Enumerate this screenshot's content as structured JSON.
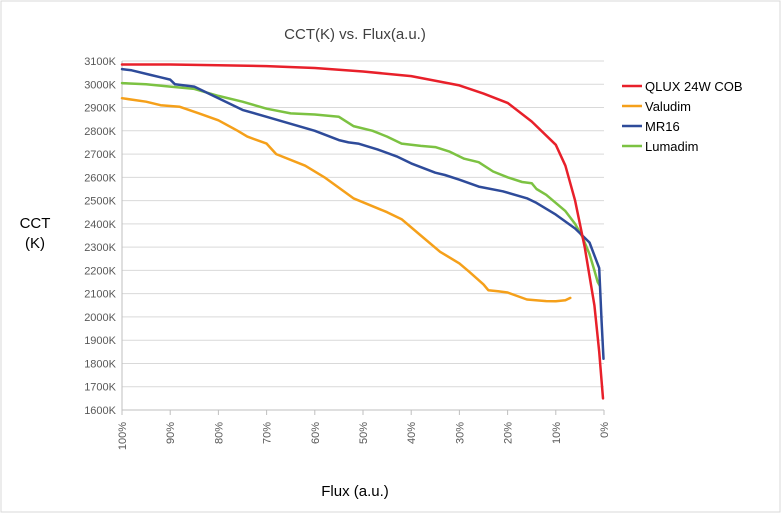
{
  "chart_data": {
    "type": "line",
    "title": "CCT(K) vs. Flux(a.u.)",
    "xlabel": "Flux (a.u.)",
    "ylabel_lines": [
      "CCT",
      "(K)"
    ],
    "x_ticks": [
      "100%",
      "90%",
      "80%",
      "70%",
      "60%",
      "50%",
      "40%",
      "30%",
      "20%",
      "10%",
      "0%"
    ],
    "x_direction": "descending",
    "xlim": [
      100,
      0
    ],
    "y_ticks": [
      "3100K",
      "3000K",
      "2900K",
      "2800K",
      "2700K",
      "2600K",
      "2500K",
      "2400K",
      "2300K",
      "2200K",
      "2100K",
      "2000K",
      "1900K",
      "1800K",
      "1700K",
      "1600K"
    ],
    "ylim": [
      1600,
      3100
    ],
    "grid": "horizontal",
    "legend_position": "right",
    "series": [
      {
        "name": "QLUX 24W COB",
        "color": "#e8202a",
        "points": [
          [
            100,
            3085
          ],
          [
            90,
            3085
          ],
          [
            80,
            3082
          ],
          [
            70,
            3078
          ],
          [
            60,
            3070
          ],
          [
            50,
            3055
          ],
          [
            40,
            3035
          ],
          [
            30,
            2995
          ],
          [
            25,
            2960
          ],
          [
            20,
            2920
          ],
          [
            15,
            2840
          ],
          [
            10,
            2740
          ],
          [
            8,
            2650
          ],
          [
            6,
            2500
          ],
          [
            4,
            2300
          ],
          [
            2,
            2050
          ],
          [
            1,
            1850
          ],
          [
            0.2,
            1650
          ]
        ]
      },
      {
        "name": "Valudim",
        "color": "#f5a01a",
        "points": [
          [
            100,
            2940
          ],
          [
            95,
            2925
          ],
          [
            92,
            2910
          ],
          [
            88,
            2903
          ],
          [
            84,
            2875
          ],
          [
            80,
            2845
          ],
          [
            76,
            2800
          ],
          [
            74,
            2775
          ],
          [
            70,
            2745
          ],
          [
            68,
            2700
          ],
          [
            62,
            2650
          ],
          [
            58,
            2600
          ],
          [
            55,
            2555
          ],
          [
            52,
            2510
          ],
          [
            45,
            2450
          ],
          [
            42,
            2420
          ],
          [
            38,
            2350
          ],
          [
            34,
            2280
          ],
          [
            30,
            2230
          ],
          [
            28,
            2195
          ],
          [
            25,
            2140
          ],
          [
            24,
            2115
          ],
          [
            22,
            2110
          ],
          [
            20,
            2105
          ],
          [
            18,
            2090
          ],
          [
            16,
            2075
          ],
          [
            12,
            2068
          ],
          [
            10,
            2067
          ],
          [
            8,
            2072
          ],
          [
            7,
            2082
          ]
        ]
      },
      {
        "name": "MR16",
        "color": "#2e4b9a",
        "points": [
          [
            100,
            3065
          ],
          [
            98,
            3060
          ],
          [
            94,
            3040
          ],
          [
            92,
            3030
          ],
          [
            90,
            3020
          ],
          [
            89,
            3000
          ],
          [
            85,
            2990
          ],
          [
            80,
            2940
          ],
          [
            75,
            2890
          ],
          [
            70,
            2860
          ],
          [
            65,
            2830
          ],
          [
            60,
            2800
          ],
          [
            55,
            2760
          ],
          [
            53,
            2750
          ],
          [
            51,
            2745
          ],
          [
            47,
            2720
          ],
          [
            43,
            2690
          ],
          [
            40,
            2660
          ],
          [
            35,
            2620
          ],
          [
            33,
            2610
          ],
          [
            30,
            2590
          ],
          [
            26,
            2560
          ],
          [
            21,
            2540
          ],
          [
            16,
            2510
          ],
          [
            14,
            2490
          ],
          [
            10,
            2440
          ],
          [
            6,
            2380
          ],
          [
            3,
            2320
          ],
          [
            1,
            2210
          ],
          [
            0.5,
            1980
          ],
          [
            0.1,
            1820
          ]
        ]
      },
      {
        "name": "Lumadim",
        "color": "#7cc242",
        "points": [
          [
            100,
            3005
          ],
          [
            95,
            3000
          ],
          [
            90,
            2990
          ],
          [
            85,
            2980
          ],
          [
            80,
            2950
          ],
          [
            75,
            2925
          ],
          [
            70,
            2895
          ],
          [
            65,
            2875
          ],
          [
            60,
            2870
          ],
          [
            55,
            2860
          ],
          [
            52,
            2820
          ],
          [
            48,
            2800
          ],
          [
            45,
            2775
          ],
          [
            42,
            2745
          ],
          [
            38,
            2735
          ],
          [
            35,
            2730
          ],
          [
            32,
            2710
          ],
          [
            29,
            2680
          ],
          [
            26,
            2665
          ],
          [
            23,
            2625
          ],
          [
            20,
            2600
          ],
          [
            17,
            2580
          ],
          [
            15,
            2575
          ],
          [
            14,
            2550
          ],
          [
            12,
            2525
          ],
          [
            10,
            2490
          ],
          [
            8,
            2455
          ],
          [
            6,
            2400
          ],
          [
            4.5,
            2345
          ],
          [
            3,
            2270
          ],
          [
            2,
            2200
          ],
          [
            1.3,
            2150
          ],
          [
            0.9,
            2135
          ]
        ]
      }
    ]
  }
}
